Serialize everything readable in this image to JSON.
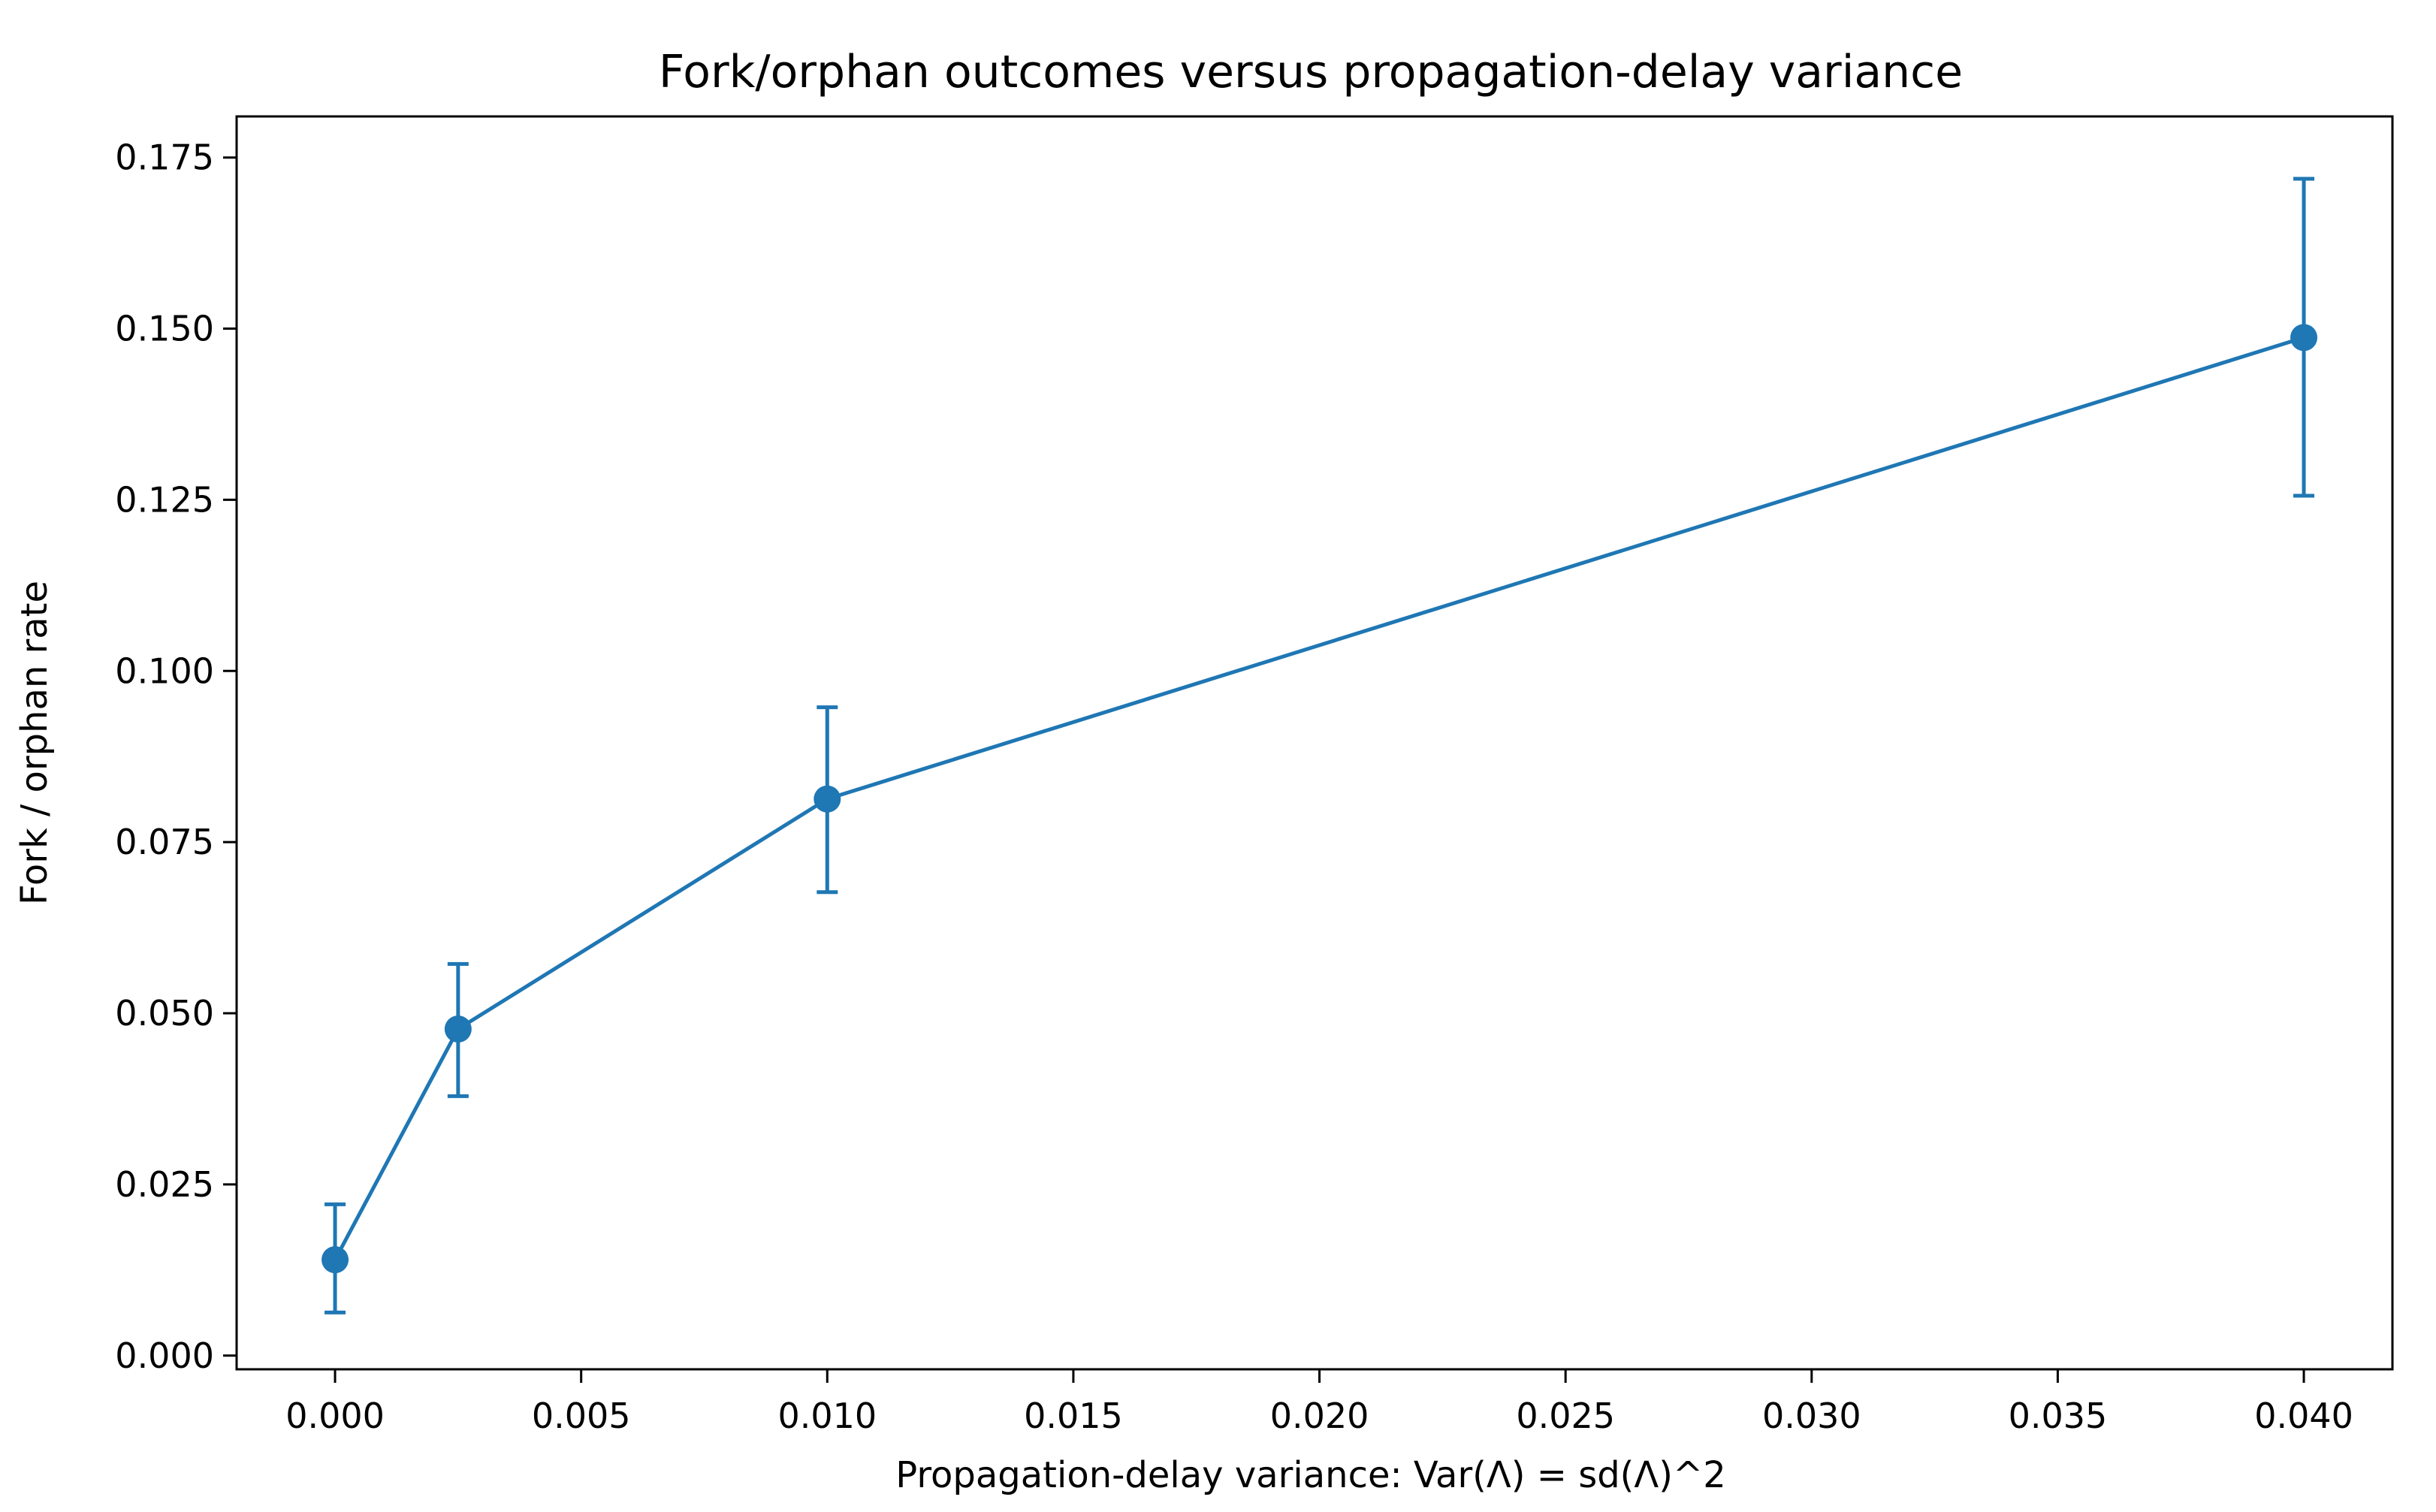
{
  "chart_data": {
    "type": "line",
    "title": "Fork/orphan outcomes versus propagation-delay variance",
    "xlabel": "Propagation-delay variance: Var(Λ) = sd(Λ)^2",
    "ylabel": "Fork / orphan rate",
    "xlim": [
      -0.002,
      0.0418
    ],
    "ylim": [
      -0.002,
      0.181
    ],
    "x_ticks": [
      0.0,
      0.005,
      0.01,
      0.015,
      0.02,
      0.025,
      0.03,
      0.035,
      0.04
    ],
    "x_tick_labels": [
      "0.000",
      "0.005",
      "0.010",
      "0.015",
      "0.020",
      "0.025",
      "0.030",
      "0.035",
      "0.040"
    ],
    "y_ticks": [
      0.0,
      0.025,
      0.05,
      0.075,
      0.1,
      0.125,
      0.15,
      0.175
    ],
    "y_tick_labels": [
      "0.000",
      "0.025",
      "0.050",
      "0.075",
      "0.100",
      "0.125",
      "0.150",
      "0.175"
    ],
    "grid": false,
    "series": [
      {
        "color": "#1f77b4",
        "marker": "circle",
        "x": [
          0.0,
          0.0025,
          0.01,
          0.04
        ],
        "y": [
          0.014,
          0.0477,
          0.0813,
          0.1487
        ],
        "y_err_low": [
          0.0063,
          0.0379,
          0.0677,
          0.1256
        ],
        "y_err_high": [
          0.0221,
          0.0572,
          0.0947,
          0.1719
        ]
      }
    ]
  }
}
